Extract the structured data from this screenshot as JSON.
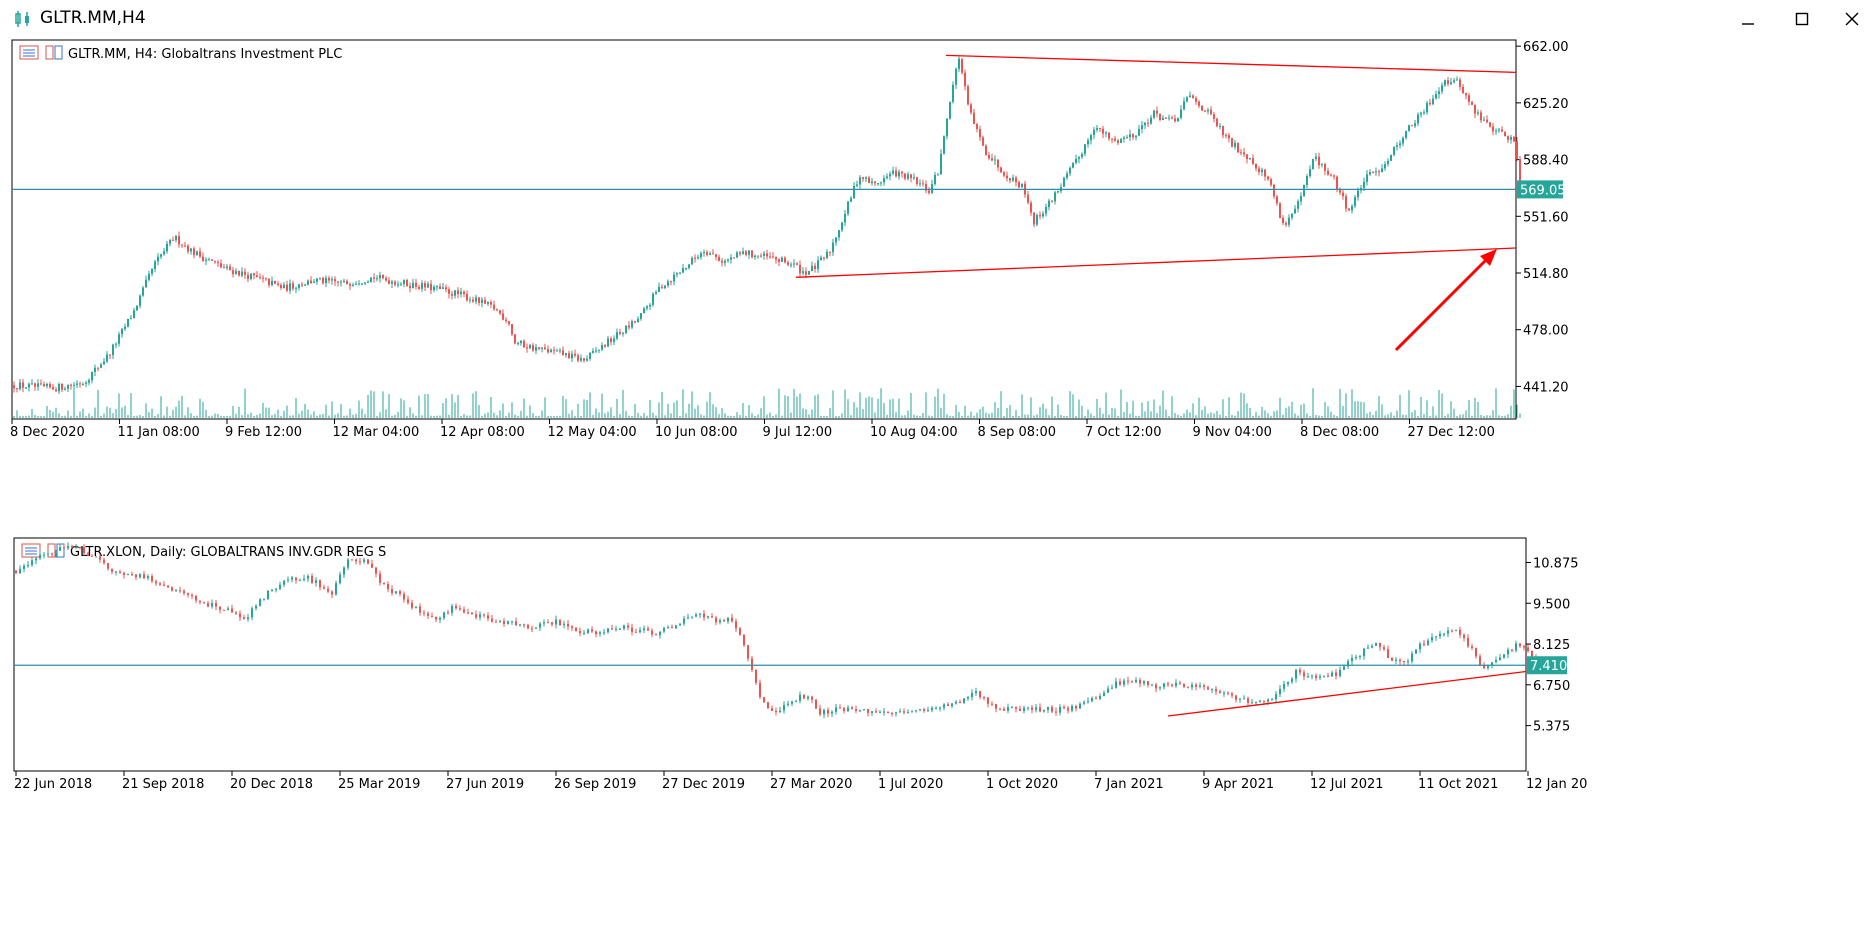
{
  "window": {
    "title": "GLTR.MM,H4",
    "minimize_icon": "minimize-icon",
    "maximize_icon": "maximize-icon",
    "close_icon": "close-icon"
  },
  "colors": {
    "bull": "#26a69a",
    "bear": "#ef5350",
    "trendline": "#ff0000",
    "hline": "#2d8fa6",
    "price_tag_bg": "#26a69a"
  },
  "chart_data": [
    {
      "type": "candlestick",
      "title": "GLTR.MM, H4:  Globaltrans Investment PLC",
      "legend_icon": "chart-properties-icon",
      "ylim": [
        422,
        666
      ],
      "y_ticks": [
        "662.00",
        "625.20",
        "588.40",
        "551.60",
        "514.80",
        "478.00",
        "441.20"
      ],
      "x_ticks": [
        "8 Dec 2020",
        "11 Jan 08:00",
        "9 Feb 12:00",
        "12 Mar 04:00",
        "12 Apr 08:00",
        "12 May 04:00",
        "10 Jun 08:00",
        "9 Jul 12:00",
        "10 Aug 04:00",
        "8 Sep 08:00",
        "7 Oct 12:00",
        "9 Nov 04:00",
        "8 Dec 08:00",
        "27 Dec 12:00"
      ],
      "current_price": "569.05",
      "current_price_value": 569.05,
      "volume_bars": true,
      "price_path": [
        [
          0,
          442
        ],
        [
          40,
          440
        ],
        [
          70,
          444
        ],
        [
          95,
          462
        ],
        [
          120,
          490
        ],
        [
          140,
          520
        ],
        [
          160,
          538
        ],
        [
          180,
          528
        ],
        [
          210,
          518
        ],
        [
          240,
          512
        ],
        [
          270,
          505
        ],
        [
          300,
          510
        ],
        [
          330,
          508
        ],
        [
          360,
          512
        ],
        [
          390,
          508
        ],
        [
          420,
          505
        ],
        [
          450,
          500
        ],
        [
          480,
          492
        ],
        [
          495,
          483
        ],
        [
          500,
          470
        ],
        [
          520,
          466
        ],
        [
          550,
          462
        ],
        [
          570,
          458
        ],
        [
          600,
          473
        ],
        [
          625,
          485
        ],
        [
          645,
          505
        ],
        [
          670,
          518
        ],
        [
          690,
          530
        ],
        [
          710,
          522
        ],
        [
          730,
          528
        ],
        [
          760,
          524
        ],
        [
          780,
          520
        ],
        [
          790,
          515
        ],
        [
          800,
          518
        ],
        [
          815,
          528
        ],
        [
          830,
          552
        ],
        [
          845,
          578
        ],
        [
          860,
          572
        ],
        [
          880,
          580
        ],
        [
          900,
          575
        ],
        [
          915,
          568
        ],
        [
          925,
          582
        ],
        [
          935,
          625
        ],
        [
          945,
          655
        ],
        [
          955,
          620
        ],
        [
          970,
          595
        ],
        [
          990,
          580
        ],
        [
          1010,
          570
        ],
        [
          1020,
          548
        ],
        [
          1035,
          560
        ],
        [
          1050,
          575
        ],
        [
          1065,
          590
        ],
        [
          1080,
          610
        ],
        [
          1100,
          600
        ],
        [
          1120,
          605
        ],
        [
          1140,
          618
        ],
        [
          1160,
          612
        ],
        [
          1175,
          630
        ],
        [
          1195,
          618
        ],
        [
          1215,
          600
        ],
        [
          1235,
          590
        ],
        [
          1255,
          575
        ],
        [
          1270,
          545
        ],
        [
          1285,
          560
        ],
        [
          1300,
          590
        ],
        [
          1320,
          575
        ],
        [
          1335,
          555
        ],
        [
          1350,
          575
        ],
        [
          1370,
          585
        ],
        [
          1390,
          605
        ],
        [
          1410,
          620
        ],
        [
          1430,
          640
        ],
        [
          1445,
          638
        ],
        [
          1460,
          620
        ],
        [
          1475,
          610
        ],
        [
          1490,
          605
        ],
        [
          1500,
          600
        ],
        [
          1508,
          569
        ]
      ],
      "trendlines": [
        {
          "from": [
            "10 Aug 04:00",
            656
          ],
          "to": [
            "right edge",
            645
          ]
        },
        {
          "from": [
            "9 Jul 12:00",
            512
          ],
          "to": [
            "right edge",
            531
          ]
        }
      ],
      "annotation": "red arrow pointing up-right"
    },
    {
      "type": "candlestick",
      "title": "GLTR.XLON, Daily:  GLOBALTRANS INV.GDR REG S",
      "legend_icon": "chart-properties-icon",
      "ylim": [
        4.35,
        11.7
      ],
      "y_ticks": [
        "10.875",
        "9.500",
        "8.125",
        "6.750",
        "5.375"
      ],
      "x_ticks": [
        "22 Jun 2018",
        "21 Sep 2018",
        "20 Dec 2018",
        "25 Mar 2019",
        "27 Jun 2019",
        "26 Sep 2019",
        "27 Dec 2019",
        "27 Mar 2020",
        "1 Jul 2020",
        "1 Oct 2020",
        "7 Jan 2021",
        "9 Apr 2021",
        "12 Jul 2021",
        "11 Oct 2021",
        "12 Jan 20"
      ],
      "current_price": "7.410",
      "current_price_value": 7.41,
      "price_path": [
        [
          0,
          10.6
        ],
        [
          20,
          11.0
        ],
        [
          40,
          11.3
        ],
        [
          60,
          11.4
        ],
        [
          80,
          11.0
        ],
        [
          100,
          10.5
        ],
        [
          130,
          10.4
        ],
        [
          160,
          9.9
        ],
        [
          190,
          9.5
        ],
        [
          215,
          9.2
        ],
        [
          230,
          9.0
        ],
        [
          250,
          9.8
        ],
        [
          270,
          10.3
        ],
        [
          290,
          10.4
        ],
        [
          305,
          10.1
        ],
        [
          315,
          9.7
        ],
        [
          330,
          10.9
        ],
        [
          350,
          10.9
        ],
        [
          365,
          10.2
        ],
        [
          385,
          9.7
        ],
        [
          400,
          9.3
        ],
        [
          420,
          9.0
        ],
        [
          440,
          9.4
        ],
        [
          460,
          9.1
        ],
        [
          480,
          8.9
        ],
        [
          500,
          8.8
        ],
        [
          520,
          8.7
        ],
        [
          540,
          8.9
        ],
        [
          560,
          8.6
        ],
        [
          580,
          8.5
        ],
        [
          600,
          8.7
        ],
        [
          620,
          8.6
        ],
        [
          640,
          8.5
        ],
        [
          660,
          8.8
        ],
        [
          680,
          9.2
        ],
        [
          700,
          8.9
        ],
        [
          715,
          9.0
        ],
        [
          725,
          8.4
        ],
        [
          735,
          7.4
        ],
        [
          745,
          6.3
        ],
        [
          755,
          5.8
        ],
        [
          765,
          5.9
        ],
        [
          775,
          6.2
        ],
        [
          790,
          6.4
        ],
        [
          805,
          5.8
        ],
        [
          820,
          5.9
        ],
        [
          840,
          5.9
        ],
        [
          860,
          5.8
        ],
        [
          880,
          5.8
        ],
        [
          900,
          5.9
        ],
        [
          920,
          6.0
        ],
        [
          940,
          6.1
        ],
        [
          960,
          6.5
        ],
        [
          980,
          6.0
        ],
        [
          1000,
          5.9
        ],
        [
          1020,
          5.95
        ],
        [
          1040,
          5.9
        ],
        [
          1060,
          6.0
        ],
        [
          1080,
          6.3
        ],
        [
          1100,
          6.8
        ],
        [
          1120,
          6.9
        ],
        [
          1140,
          6.7
        ],
        [
          1160,
          6.8
        ],
        [
          1180,
          6.7
        ],
        [
          1200,
          6.5
        ],
        [
          1220,
          6.3
        ],
        [
          1240,
          6.1
        ],
        [
          1260,
          6.4
        ],
        [
          1280,
          7.2
        ],
        [
          1300,
          7.0
        ],
        [
          1320,
          7.1
        ],
        [
          1340,
          7.7
        ],
        [
          1360,
          8.2
        ],
        [
          1375,
          7.6
        ],
        [
          1390,
          7.5
        ],
        [
          1405,
          8.1
        ],
        [
          1420,
          8.4
        ],
        [
          1440,
          8.6
        ],
        [
          1455,
          8.0
        ],
        [
          1465,
          7.3
        ],
        [
          1480,
          7.5
        ],
        [
          1500,
          8.1
        ],
        [
          1515,
          7.8
        ],
        [
          1523,
          7.41
        ]
      ],
      "trendlines": [
        {
          "from": [
            "9 Apr 2021",
            5.7
          ],
          "to": [
            "right edge",
            7.2
          ]
        }
      ]
    }
  ]
}
